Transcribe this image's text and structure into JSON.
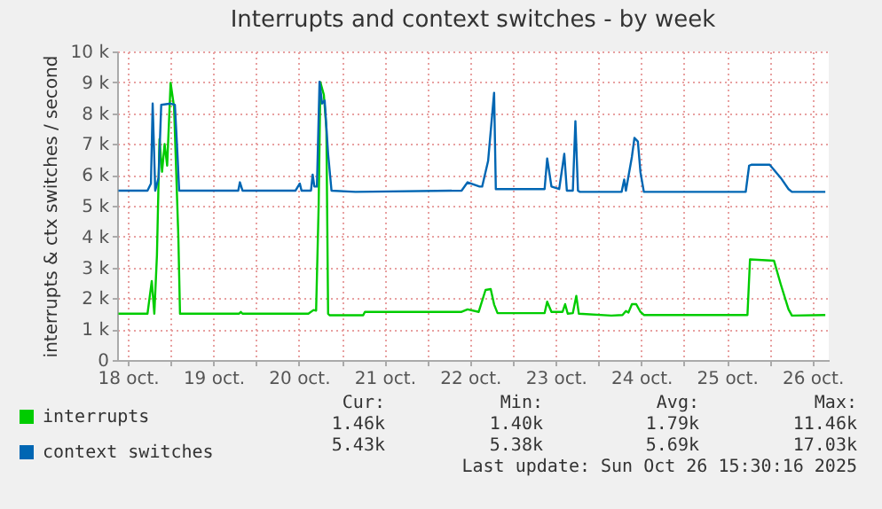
{
  "chart_data": {
    "type": "line",
    "title": "Interrupts and context switches - by week",
    "ylabel": "interrupts & ctx switches / second",
    "xlim": [
      "2025-10-18T09:00",
      "2025-10-26T16:34"
    ],
    "xticks": [
      {
        "value": "2025-10-18T12:00",
        "label": "18 oct."
      },
      {
        "value": "2025-10-19",
        "label": null
      },
      {
        "value": "2025-10-19T12:00",
        "label": "19 oct."
      },
      {
        "value": "2025-10-20",
        "label": null
      },
      {
        "value": "2025-10-20T12:00",
        "label": "20 oct."
      },
      {
        "value": "2025-10-21",
        "label": null
      },
      {
        "value": "2025-10-21T12:00",
        "label": "21 oct."
      },
      {
        "value": "2025-10-22",
        "label": null
      },
      {
        "value": "2025-10-22T12:00",
        "label": "22 oct."
      },
      {
        "value": "2025-10-23",
        "label": null
      },
      {
        "value": "2025-10-23T12:00",
        "label": "23 oct."
      },
      {
        "value": "2025-10-24",
        "label": null
      },
      {
        "value": "2025-10-24T12:00",
        "label": "24 oct."
      },
      {
        "value": "2025-10-25",
        "label": null
      },
      {
        "value": "2025-10-25T12:00",
        "label": "25 oct."
      },
      {
        "value": "2025-10-26",
        "label": null
      },
      {
        "value": "2025-10-26T12:00",
        "label": "26 oct."
      }
    ],
    "ylim": [
      0,
      10000
    ],
    "yticks": [
      0,
      {
        "value": 1000,
        "label": "1 k"
      },
      {
        "value": 2000,
        "label": "2 k"
      },
      {
        "value": 3000,
        "label": "3 k"
      },
      {
        "value": 4000,
        "label": "4 k"
      },
      {
        "value": 5000,
        "label": "5 k"
      },
      {
        "value": 6000,
        "label": "6 k"
      },
      {
        "value": 7000,
        "label": "7 k"
      },
      {
        "value": 8000,
        "label": "8 k"
      },
      {
        "value": 9000,
        "label": "9 k"
      },
      {
        "value": 10000,
        "label": "10 k"
      }
    ],
    "grid": true,
    "legend": "bottom left",
    "line_style": "solid",
    "series": [
      {
        "name": "interrupts",
        "color": "#00cc00",
        "x": [
          "2025-10-18T09:22",
          "2025-10-18T17:31",
          "2025-10-18T18:43",
          "2025-10-18T19:26",
          "2025-10-18T20:10",
          "2025-10-18T20:53",
          "2025-10-18T21:36",
          "2025-10-18T22:19",
          "2025-10-18T23:02",
          "2025-10-19T00:00",
          "2025-10-19T00:58",
          "2025-10-19T02:10",
          "2025-10-19T02:38",
          "2025-10-19T19:12",
          "2025-10-19T19:41",
          "2025-10-19T20:10",
          "2025-10-20T14:38",
          "2025-10-20T16:05",
          "2025-10-20T16:48",
          "2025-10-20T17:31",
          "2025-10-20T18:00",
          "2025-10-20T18:58",
          "2025-10-20T19:41",
          "2025-10-20T20:10",
          "2025-10-20T20:38",
          "2025-10-21T06:00",
          "2025-10-21T06:29",
          "2025-10-22T09:36",
          "2025-10-22T11:17",
          "2025-10-22T14:24",
          "2025-10-22T16:19",
          "2025-10-22T17:46",
          "2025-10-22T18:43",
          "2025-10-22T19:41",
          "2025-10-23T08:53",
          "2025-10-23T09:36",
          "2025-10-23T10:48",
          "2025-10-23T13:55",
          "2025-10-23T14:38",
          "2025-10-23T15:22",
          "2025-10-23T16:48",
          "2025-10-23T17:46",
          "2025-10-23T18:29",
          "2025-10-24T03:36",
          "2025-10-24T06:43",
          "2025-10-24T07:41",
          "2025-10-24T08:24",
          "2025-10-24T09:22",
          "2025-10-24T10:34",
          "2025-10-24T11:46",
          "2025-10-24T12:43",
          "2025-10-25T17:46",
          "2025-10-25T18:29",
          "2025-10-26T01:12",
          "2025-10-26T03:07",
          "2025-10-26T05:17",
          "2025-10-26T06:14",
          "2025-10-26T15:36"
        ],
        "values": [
          1500,
          1500,
          2560,
          1500,
          3400,
          7160,
          6100,
          7000,
          6300,
          8980,
          8200,
          4000,
          1500,
          1500,
          1560,
          1500,
          1500,
          1620,
          1600,
          5000,
          9000,
          8600,
          7500,
          1500,
          1450,
          1450,
          1560,
          1560,
          1640,
          1560,
          2270,
          2300,
          1800,
          1520,
          1520,
          1890,
          1560,
          1560,
          1810,
          1500,
          1520,
          2080,
          1500,
          1440,
          1460,
          1590,
          1540,
          1810,
          1810,
          1560,
          1460,
          1460,
          3260,
          3220,
          2450,
          1640,
          1440,
          1460
        ]
      },
      {
        "name": "context switches",
        "color": "#0066b3",
        "x": [
          "2025-10-18T09:22",
          "2025-10-18T17:31",
          "2025-10-18T18:29",
          "2025-10-18T18:58",
          "2025-10-18T19:41",
          "2025-10-18T20:38",
          "2025-10-18T21:22",
          "2025-10-19T00:00",
          "2025-10-19T01:12",
          "2025-10-19T01:55",
          "2025-10-19T02:24",
          "2025-10-19T18:58",
          "2025-10-19T19:26",
          "2025-10-19T20:10",
          "2025-10-20T11:02",
          "2025-10-20T12:14",
          "2025-10-20T12:43",
          "2025-10-20T15:22",
          "2025-10-20T15:50",
          "2025-10-20T16:19",
          "2025-10-20T17:02",
          "2025-10-20T17:46",
          "2025-10-20T18:29",
          "2025-10-20T19:12",
          "2025-10-20T20:10",
          "2025-10-20T21:07",
          "2025-10-21T03:50",
          "2025-10-22T09:36",
          "2025-10-22T11:17",
          "2025-10-22T14:38",
          "2025-10-22T15:22",
          "2025-10-22T17:02",
          "2025-10-22T18:43",
          "2025-10-22T19:12",
          "2025-10-23T08:53",
          "2025-10-23T09:36",
          "2025-10-23T10:48",
          "2025-10-23T12:58",
          "2025-10-23T14:24",
          "2025-10-23T15:07",
          "2025-10-23T16:48",
          "2025-10-23T17:31",
          "2025-10-23T18:14",
          "2025-10-23T18:43",
          "2025-10-24T06:29",
          "2025-10-24T07:12",
          "2025-10-24T07:41",
          "2025-10-24T09:22",
          "2025-10-24T10:05",
          "2025-10-24T11:02",
          "2025-10-24T11:46",
          "2025-10-24T12:43",
          "2025-10-25T17:17",
          "2025-10-25T18:14",
          "2025-10-25T18:58",
          "2025-10-26T00:00",
          "2025-10-26T03:07",
          "2025-10-26T05:17",
          "2025-10-26T06:14",
          "2025-10-26T15:36"
        ],
        "values": [
          5490,
          5490,
          5720,
          8310,
          5490,
          5910,
          8270,
          8310,
          8270,
          6680,
          5490,
          5490,
          5760,
          5490,
          5490,
          5720,
          5490,
          5490,
          6010,
          5620,
          5620,
          9020,
          8310,
          8410,
          6680,
          5490,
          5450,
          5490,
          5760,
          5620,
          5620,
          6450,
          8660,
          5540,
          5540,
          6530,
          5620,
          5540,
          6680,
          5490,
          5490,
          7740,
          5490,
          5450,
          5450,
          5850,
          5490,
          6590,
          7200,
          7080,
          6080,
          5450,
          5450,
          6300,
          6330,
          6330,
          5900,
          5540,
          5450,
          5450
        ]
      }
    ],
    "annotations": [
      "Cur:",
      "Min:",
      "Avg:",
      "Max:",
      "1.46k",
      "1.40k",
      "1.79k",
      "11.46k",
      "5.43k",
      "5.38k",
      "5.69k",
      "17.03k",
      "Last update: Sun Oct 26 15:30:16 2025"
    ]
  }
}
